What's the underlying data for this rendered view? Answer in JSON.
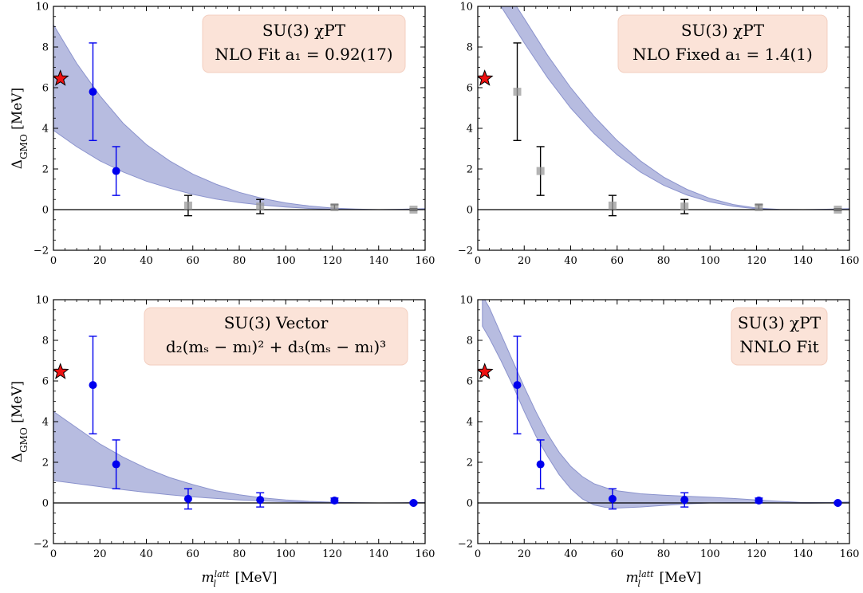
{
  "figure": {
    "xlabel": "m_l^{latt} [MeV]",
    "ylabel": "Δ_GMO [MeV]"
  },
  "colors": {
    "band": "#8b93cd",
    "point_active": "#0000ee",
    "point_inactive": "#9a9a9a",
    "errorbar_inactive": "#000000",
    "star": "#ee1111",
    "legend_bg": "#fbe3d8"
  },
  "chart_data": [
    {
      "id": "nlo-fit",
      "type": "scatter",
      "legend_lines": [
        "SU(3) χPT",
        "NLO Fit a₁ = 0.92(17)"
      ],
      "xlim": [
        0,
        160
      ],
      "ylim": [
        -2,
        10
      ],
      "xticks": [
        0,
        20,
        40,
        60,
        80,
        100,
        120,
        140,
        160
      ],
      "yticks": [
        -2,
        0,
        2,
        4,
        6,
        8,
        10
      ],
      "xlabel": "",
      "ylabel": "Δ_GMO [MeV]",
      "legend_position": "top-right",
      "points": [
        {
          "x": 17,
          "y": 5.8,
          "err": 2.4,
          "active": true
        },
        {
          "x": 27,
          "y": 1.9,
          "err": 1.2,
          "active": true
        },
        {
          "x": 58,
          "y": 0.2,
          "err": 0.5,
          "active": false
        },
        {
          "x": 89,
          "y": 0.15,
          "err": 0.35,
          "active": false
        },
        {
          "x": 121,
          "y": 0.12,
          "err": 0.12,
          "active": false
        },
        {
          "x": 155,
          "y": 0.0,
          "err": 0.05,
          "active": false
        }
      ],
      "star": {
        "x": 3,
        "y": 6.45
      },
      "band": {
        "x": [
          0,
          10,
          20,
          30,
          40,
          50,
          60,
          70,
          80,
          90,
          100,
          110,
          120,
          130,
          140,
          150,
          160
        ],
        "upper": [
          9.1,
          7.2,
          5.6,
          4.25,
          3.2,
          2.4,
          1.75,
          1.25,
          0.85,
          0.55,
          0.33,
          0.18,
          0.08,
          0.03,
          0.0,
          0.02,
          0.05
        ],
        "lower": [
          3.9,
          3.1,
          2.4,
          1.85,
          1.4,
          1.05,
          0.75,
          0.52,
          0.35,
          0.22,
          0.13,
          0.06,
          0.02,
          0.0,
          0.0,
          0.0,
          0.01
        ]
      }
    },
    {
      "id": "nlo-fixed",
      "type": "scatter",
      "legend_lines": [
        "SU(3) χPT",
        "NLO Fixed a₁ = 1.4(1)"
      ],
      "xlim": [
        0,
        160
      ],
      "ylim": [
        -2,
        10
      ],
      "xticks": [
        0,
        20,
        40,
        60,
        80,
        100,
        120,
        140,
        160
      ],
      "yticks": [
        -2,
        0,
        2,
        4,
        6,
        8,
        10
      ],
      "xlabel": "",
      "ylabel": "",
      "legend_position": "top-right",
      "points": [
        {
          "x": 17,
          "y": 5.8,
          "err": 2.4,
          "active": false
        },
        {
          "x": 27,
          "y": 1.9,
          "err": 1.2,
          "active": false
        },
        {
          "x": 58,
          "y": 0.2,
          "err": 0.5,
          "active": false
        },
        {
          "x": 89,
          "y": 0.15,
          "err": 0.35,
          "active": false
        },
        {
          "x": 121,
          "y": 0.12,
          "err": 0.12,
          "active": false
        },
        {
          "x": 155,
          "y": 0.0,
          "err": 0.05,
          "active": false
        }
      ],
      "star": {
        "x": 3,
        "y": 6.45
      },
      "band": {
        "x": [
          7,
          10,
          20,
          30,
          40,
          50,
          60,
          70,
          80,
          90,
          100,
          110,
          120,
          130,
          140,
          150,
          160
        ],
        "upper": [
          11.5,
          11.2,
          9.4,
          7.6,
          6.0,
          4.6,
          3.4,
          2.4,
          1.6,
          1.0,
          0.55,
          0.25,
          0.08,
          0.01,
          0.0,
          0.02,
          0.05
        ],
        "lower": [
          10.4,
          10.0,
          8.2,
          6.5,
          5.0,
          3.75,
          2.7,
          1.85,
          1.2,
          0.72,
          0.38,
          0.16,
          0.04,
          0.0,
          0.0,
          0.0,
          0.01
        ]
      }
    },
    {
      "id": "vector",
      "type": "scatter",
      "legend_lines": [
        "SU(3) Vector",
        "d₂(mₛ − mₗ)² + d₃(mₛ − mₗ)³"
      ],
      "xlim": [
        0,
        160
      ],
      "ylim": [
        -2,
        10
      ],
      "xticks": [
        0,
        20,
        40,
        60,
        80,
        100,
        120,
        140,
        160
      ],
      "yticks": [
        -2,
        0,
        2,
        4,
        6,
        8,
        10
      ],
      "xlabel": "m_l^{latt} [MeV]",
      "ylabel": "Δ_GMO [MeV]",
      "legend_position": "top-right",
      "points": [
        {
          "x": 17,
          "y": 5.8,
          "err": 2.4,
          "active": true
        },
        {
          "x": 27,
          "y": 1.9,
          "err": 1.2,
          "active": true
        },
        {
          "x": 58,
          "y": 0.2,
          "err": 0.5,
          "active": true
        },
        {
          "x": 89,
          "y": 0.15,
          "err": 0.35,
          "active": true
        },
        {
          "x": 121,
          "y": 0.12,
          "err": 0.12,
          "active": true
        },
        {
          "x": 155,
          "y": 0.0,
          "err": 0.05,
          "active": true
        }
      ],
      "star": {
        "x": 3,
        "y": 6.45
      },
      "band": {
        "x": [
          0,
          10,
          20,
          30,
          40,
          50,
          60,
          70,
          80,
          90,
          100,
          110,
          120,
          130,
          140,
          150,
          160
        ],
        "upper": [
          4.5,
          3.7,
          2.9,
          2.25,
          1.7,
          1.25,
          0.9,
          0.6,
          0.4,
          0.25,
          0.15,
          0.08,
          0.04,
          0.015,
          0.0,
          0.01,
          0.03
        ],
        "lower": [
          1.1,
          0.95,
          0.8,
          0.65,
          0.52,
          0.4,
          0.3,
          0.22,
          0.15,
          0.1,
          0.06,
          0.03,
          0.01,
          0.0,
          0.0,
          0.0,
          0.0
        ]
      }
    },
    {
      "id": "nnlo-fit",
      "type": "scatter",
      "legend_lines": [
        "SU(3) χPT",
        "NNLO Fit"
      ],
      "xlim": [
        0,
        160
      ],
      "ylim": [
        -2,
        10
      ],
      "xticks": [
        0,
        20,
        40,
        60,
        80,
        100,
        120,
        140,
        160
      ],
      "yticks": [
        -2,
        0,
        2,
        4,
        6,
        8,
        10
      ],
      "xlabel": "m_l^{latt} [MeV]",
      "ylabel": "",
      "legend_position": "top-right",
      "points": [
        {
          "x": 17,
          "y": 5.8,
          "err": 2.4,
          "active": true
        },
        {
          "x": 27,
          "y": 1.9,
          "err": 1.2,
          "active": true
        },
        {
          "x": 58,
          "y": 0.2,
          "err": 0.5,
          "active": true
        },
        {
          "x": 89,
          "y": 0.15,
          "err": 0.35,
          "active": true
        },
        {
          "x": 121,
          "y": 0.12,
          "err": 0.12,
          "active": true
        },
        {
          "x": 155,
          "y": 0.0,
          "err": 0.05,
          "active": true
        }
      ],
      "star": {
        "x": 3,
        "y": 6.45
      },
      "band": {
        "x": [
          2,
          5,
          10,
          15,
          20,
          25,
          30,
          35,
          40,
          45,
          50,
          55,
          60,
          70,
          80,
          90,
          100,
          110,
          120,
          130,
          140,
          150,
          160
        ],
        "upper": [
          10.2,
          9.6,
          8.3,
          7.0,
          5.7,
          4.5,
          3.4,
          2.5,
          1.8,
          1.3,
          0.95,
          0.75,
          0.6,
          0.45,
          0.38,
          0.33,
          0.28,
          0.22,
          0.15,
          0.08,
          0.02,
          0.02,
          0.05
        ],
        "lower": [
          8.7,
          8.1,
          7.0,
          5.8,
          4.5,
          3.3,
          2.3,
          1.4,
          0.7,
          0.2,
          -0.1,
          -0.22,
          -0.25,
          -0.2,
          -0.12,
          -0.05,
          0.0,
          0.02,
          0.02,
          0.0,
          -0.01,
          0.0,
          0.01
        ]
      }
    }
  ]
}
